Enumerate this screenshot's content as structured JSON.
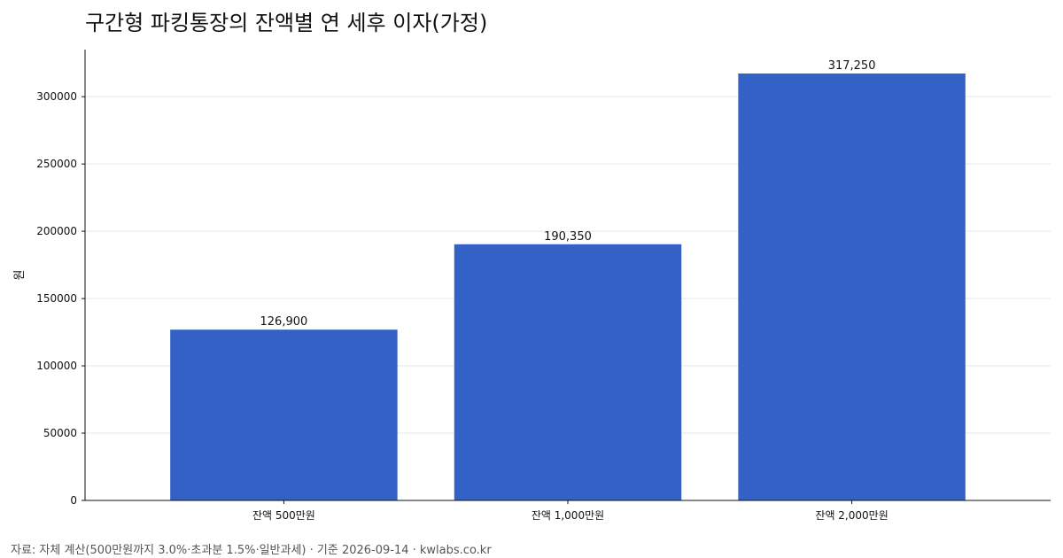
{
  "chart_data": {
    "type": "bar",
    "title": "구간형 파킹통장의 잔액별 연 세후 이자(가정)",
    "xlabel": "",
    "ylabel": "원",
    "categories": [
      "잔액 500만원",
      "잔액 1,000만원",
      "잔액 2,000만원"
    ],
    "values": [
      126900,
      190350,
      317250
    ],
    "value_labels": [
      "126,900",
      "190,350",
      "317,250"
    ],
    "ylim": [
      0,
      335000
    ],
    "yticks": [
      0,
      50000,
      100000,
      150000,
      200000,
      250000,
      300000
    ],
    "ytick_labels": [
      "0",
      "50000",
      "100000",
      "150000",
      "200000",
      "250000",
      "300000"
    ],
    "grid": "horizontal",
    "bar_color": "#3461c6",
    "grid_color": "#e6e6e6"
  },
  "source_note": "자료: 자체 계산(500만원까지 3.0%·초과분 1.5%·일반과세) · 기준 2026-09-14 · kwlabs.co.kr"
}
